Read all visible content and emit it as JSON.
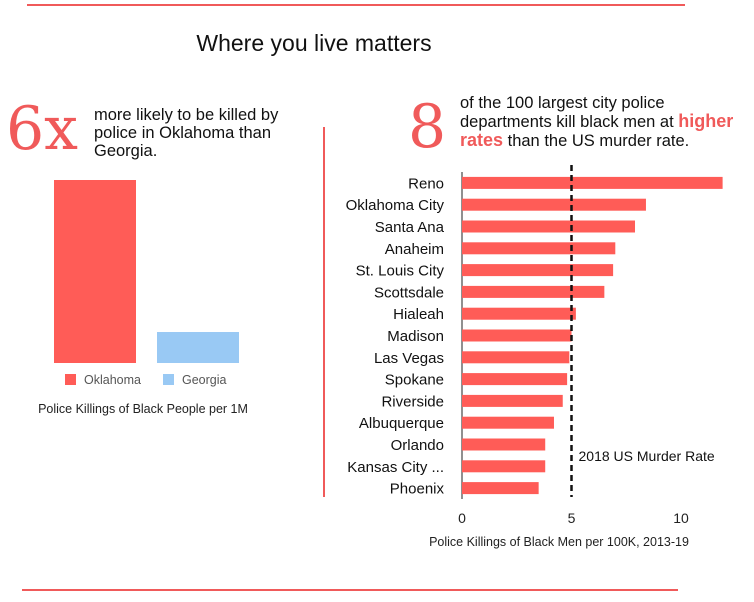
{
  "title": "Where you live matters",
  "colors": {
    "accent": "#f05a5a",
    "oklahoma": "#ff5c57",
    "georgia": "#99c9f4"
  },
  "left": {
    "stat": "6x",
    "text": "more likely to be killed by police in Oklahoma than Georgia."
  },
  "right": {
    "stat": "8",
    "text_pre": "of the 100 largest city police departments kill black men at",
    "text_highlight": "higher rates",
    "text_post": "than the US murder rate."
  },
  "chart_data": [
    {
      "type": "bar",
      "categories": [
        "Oklahoma",
        "Georgia"
      ],
      "values": [
        12.4,
        2.1
      ],
      "xlabel": "Police Killings of Black People per 1M",
      "legend": [
        "Oklahoma",
        "Georgia"
      ],
      "legend_position": "bottom"
    },
    {
      "type": "bar",
      "orientation": "horizontal",
      "categories": [
        "Reno",
        "Oklahoma City",
        "Santa Ana",
        "Anaheim",
        "St. Louis City",
        "Scottsdale",
        "Hialeah",
        "Madison",
        "Las Vegas",
        "Spokane",
        "Riverside",
        "Albuquerque",
        "Orlando",
        "Kansas City ...",
        "Phoenix"
      ],
      "values": [
        11.9,
        8.4,
        7.9,
        7.0,
        6.9,
        6.5,
        5.2,
        5.0,
        4.9,
        4.8,
        4.6,
        4.2,
        3.8,
        3.8,
        3.5
      ],
      "xlabel": "Police Killings of Black Men per 100K, 2013-19",
      "xlim": [
        0,
        12.5
      ],
      "xticks": [
        0,
        5,
        10
      ],
      "reference_line": {
        "value": 5.0,
        "label": "2018 US Murder Rate"
      },
      "grid": false
    }
  ]
}
